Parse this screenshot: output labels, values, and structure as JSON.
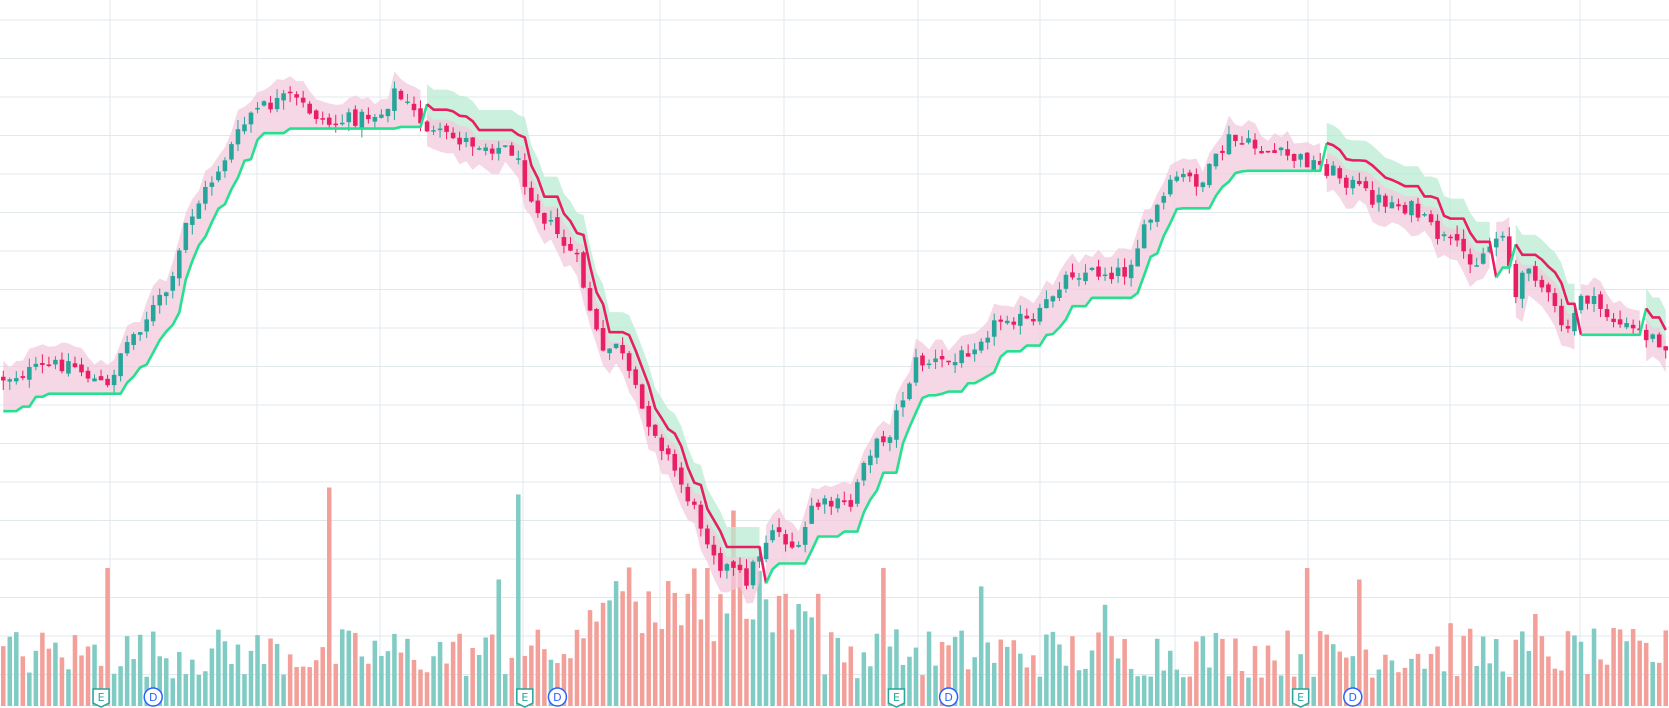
{
  "chart_data": {
    "type": "candlestick",
    "title": "",
    "xlabel": "",
    "ylabel": "",
    "grid": true,
    "legend": "none",
    "x_count": 256,
    "price_ylim": [
      0,
      100
    ],
    "volume_ylim": [
      0,
      100
    ],
    "price_trace": {
      "knots": [
        [
          0,
          0.6
        ],
        [
          10,
          0.57
        ],
        [
          16,
          0.62
        ],
        [
          18,
          0.55
        ],
        [
          26,
          0.42
        ],
        [
          28,
          0.31
        ],
        [
          38,
          0.1
        ],
        [
          44,
          0.07
        ],
        [
          50,
          0.12
        ],
        [
          58,
          0.1
        ],
        [
          60,
          0.06
        ],
        [
          66,
          0.14
        ],
        [
          78,
          0.17
        ],
        [
          82,
          0.28
        ],
        [
          88,
          0.38
        ],
        [
          92,
          0.56
        ],
        [
          94,
          0.53
        ],
        [
          98,
          0.66
        ],
        [
          100,
          0.7
        ],
        [
          104,
          0.8
        ],
        [
          110,
          0.95
        ],
        [
          114,
          0.98
        ],
        [
          118,
          0.88
        ],
        [
          122,
          0.93
        ],
        [
          124,
          0.84
        ],
        [
          130,
          0.84
        ],
        [
          132,
          0.75
        ],
        [
          136,
          0.7
        ],
        [
          140,
          0.57
        ],
        [
          146,
          0.57
        ],
        [
          150,
          0.52
        ],
        [
          154,
          0.48
        ],
        [
          158,
          0.5
        ],
        [
          162,
          0.42
        ],
        [
          164,
          0.4
        ],
        [
          168,
          0.4
        ],
        [
          172,
          0.4
        ],
        [
          176,
          0.3
        ],
        [
          180,
          0.22
        ],
        [
          184,
          0.23
        ],
        [
          188,
          0.15
        ],
        [
          196,
          0.18
        ],
        [
          200,
          0.19
        ],
        [
          204,
          0.21
        ],
        [
          210,
          0.26
        ],
        [
          216,
          0.28
        ],
        [
          220,
          0.33
        ],
        [
          226,
          0.38
        ],
        [
          230,
          0.32
        ],
        [
          232,
          0.45
        ],
        [
          234,
          0.38
        ],
        [
          240,
          0.52
        ],
        [
          242,
          0.44
        ],
        [
          248,
          0.5
        ],
        [
          252,
          0.52
        ],
        [
          256,
          0.54
        ]
      ]
    },
    "series": [
      {
        "name": "",
        "type": "candles",
        "colors": {
          "up": "#26a69a",
          "down": "#e91e63",
          "hollow_up": "#9e9e9e"
        }
      },
      {
        "name": "",
        "type": "trailing-stop-line",
        "colors": {
          "long": "#26e08f",
          "short": "#e91e63"
        }
      },
      {
        "name": "",
        "type": "volume",
        "colors": {
          "up": "#80cbc4",
          "down": "#f4a09a"
        }
      }
    ],
    "markers": [
      {
        "x": 15,
        "kind": "earnings",
        "label": "E"
      },
      {
        "x": 23,
        "kind": "dividend",
        "label": "D"
      },
      {
        "x": 80,
        "kind": "earnings",
        "label": "E"
      },
      {
        "x": 85,
        "kind": "dividend",
        "label": "D"
      },
      {
        "x": 137,
        "kind": "earnings",
        "label": "E"
      },
      {
        "x": 145,
        "kind": "dividend",
        "label": "D"
      },
      {
        "x": 199,
        "kind": "earnings",
        "label": "E"
      },
      {
        "x": 207,
        "kind": "dividend",
        "label": "D"
      }
    ],
    "colors": {
      "grid": "#e0e8ec",
      "band_long": "#b9ebd3",
      "band_short": "#f3c9dc",
      "line_long": "#26e08f",
      "line_short": "#e91e63",
      "marker_earnings": "#26a69a",
      "marker_dividend": "#2962ff"
    }
  }
}
